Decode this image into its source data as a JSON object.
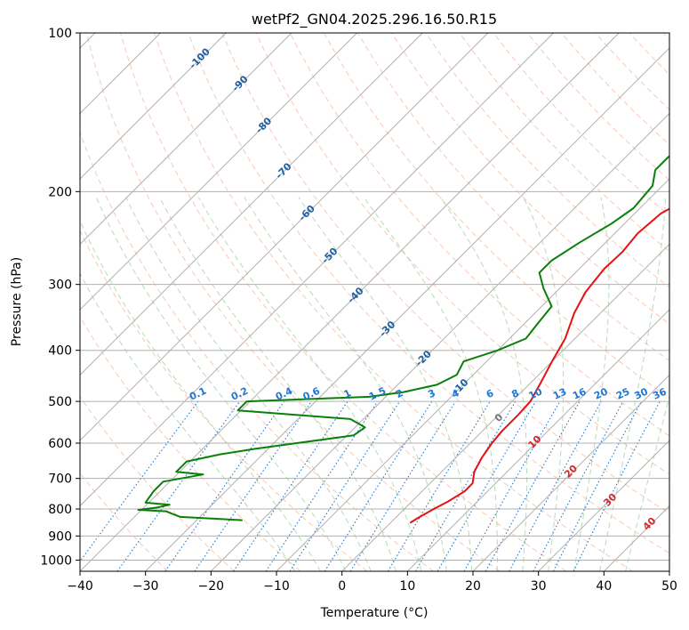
{
  "chart_data": {
    "type": "line",
    "title": "wetPf2_GN04.2025.296.16.50.R15",
    "xlabel": "Temperature (°C)",
    "ylabel": "Pressure (hPa)",
    "xlim": [
      -40,
      50
    ],
    "ylim": [
      1050,
      100
    ],
    "y_scale": "log",
    "x_ticks": [
      "−40",
      "−30",
      "−20",
      "−10",
      "0",
      "10",
      "20",
      "30",
      "40",
      "50"
    ],
    "y_ticks": [
      {
        "p": 100,
        "label": "100"
      },
      {
        "p": 200,
        "label": "200"
      },
      {
        "p": 300,
        "label": "300"
      },
      {
        "p": 400,
        "label": "400"
      },
      {
        "p": 500,
        "label": "500"
      },
      {
        "p": 600,
        "label": "600"
      },
      {
        "p": 700,
        "label": "700"
      },
      {
        "p": 800,
        "label": "800"
      },
      {
        "p": 900,
        "label": "900"
      },
      {
        "p": 1000,
        "label": "1000"
      }
    ],
    "grid": true,
    "skew": 35,
    "colors": {
      "temperature": "#e81010",
      "dewpoint": "#0a800a",
      "isotherm": "#b0b0b0",
      "dry_adiabat": "#f4a582",
      "moist_adiabat": "#99cc99",
      "mixing_ratio": "#1f77d4",
      "isotherm_label": "#1f5fa0",
      "moist_label": "#d62728",
      "dry_label": "#777777"
    },
    "series": [
      {
        "key": "temperature",
        "points": [
          [
            3.0,
            850
          ],
          [
            3.5,
            830
          ],
          [
            4.5,
            800
          ],
          [
            5.5,
            775
          ],
          [
            6.5,
            740
          ],
          [
            6.5,
            715
          ],
          [
            5.0,
            680
          ],
          [
            4.0,
            640
          ],
          [
            3.3,
            600
          ],
          [
            3.0,
            570
          ],
          [
            3.0,
            530
          ],
          [
            2.8,
            500
          ],
          [
            1.5,
            460
          ],
          [
            0.0,
            420
          ],
          [
            -1.5,
            380
          ],
          [
            -4.0,
            340
          ],
          [
            -5.5,
            310
          ],
          [
            -6.2,
            280
          ],
          [
            -6.0,
            260
          ],
          [
            -6.5,
            240
          ],
          [
            -6.0,
            220
          ],
          [
            -4.0,
            205
          ],
          [
            1.0,
            195
          ],
          [
            4.0,
            190
          ],
          [
            8.0,
            182
          ],
          [
            13.0,
            170
          ],
          [
            17.0,
            160
          ],
          [
            23.0,
            148
          ],
          [
            29.0,
            135
          ],
          [
            31.0,
            125
          ],
          [
            34.0,
            115
          ],
          [
            36.0,
            107
          ],
          [
            37.0,
            100
          ]
        ]
      },
      {
        "key": "dewpoint",
        "points": [
          [
            -23.0,
            840
          ],
          [
            -33.0,
            828
          ],
          [
            -35.0,
            815
          ],
          [
            -36.0,
            808
          ],
          [
            -40.5,
            803
          ],
          [
            -38.0,
            795
          ],
          [
            -36.5,
            785
          ],
          [
            -40.5,
            778
          ],
          [
            -41.0,
            740
          ],
          [
            -41.0,
            710
          ],
          [
            -36.0,
            688
          ],
          [
            -40.5,
            680
          ],
          [
            -40.5,
            650
          ],
          [
            -36.5,
            630
          ],
          [
            -32.0,
            615
          ],
          [
            -19.0,
            580
          ],
          [
            -18.5,
            560
          ],
          [
            -22.0,
            540
          ],
          [
            -40.5,
            520
          ],
          [
            -40.5,
            500
          ],
          [
            -22.5,
            490
          ],
          [
            -18.0,
            480
          ],
          [
            -14.0,
            465
          ],
          [
            -12.5,
            445
          ],
          [
            -13.5,
            420
          ],
          [
            -10.0,
            400
          ],
          [
            -7.5,
            380
          ],
          [
            -8.0,
            355
          ],
          [
            -8.5,
            330
          ],
          [
            -12.5,
            305
          ],
          [
            -15.5,
            285
          ],
          [
            -15.5,
            270
          ],
          [
            -14.0,
            250
          ],
          [
            -12.0,
            230
          ],
          [
            -11.0,
            215
          ],
          [
            -11.5,
            195
          ],
          [
            -13.5,
            182
          ],
          [
            -13.5,
            172
          ],
          [
            -12.0,
            160
          ],
          [
            -11.0,
            145
          ],
          [
            -10.0,
            130
          ],
          [
            -8.0,
            118
          ],
          [
            -6.0,
            108
          ],
          [
            -4.5,
            100
          ]
        ]
      }
    ],
    "isotherm_labels": [
      {
        "t": -100,
        "p": 112,
        "label": "-100"
      },
      {
        "t": -90,
        "p": 125,
        "label": "-90"
      },
      {
        "t": -80,
        "p": 150,
        "label": "-80"
      },
      {
        "t": -70,
        "p": 183,
        "label": "-70"
      },
      {
        "t": -60,
        "p": 220,
        "label": "-60"
      },
      {
        "t": -50,
        "p": 265,
        "label": "-50"
      },
      {
        "t": -40,
        "p": 315,
        "label": "-40"
      },
      {
        "t": -30,
        "p": 365,
        "label": "-30"
      },
      {
        "t": -20,
        "p": 415,
        "label": "-20"
      },
      {
        "t": -10,
        "p": 470,
        "label": "-10"
      }
    ],
    "moist_labels": [
      {
        "x": 24.0,
        "p": 538,
        "label": "0",
        "color": "dry_label"
      },
      {
        "x": 29.5,
        "p": 598,
        "label": "10",
        "color": "moist_label"
      },
      {
        "x": 35.0,
        "p": 680,
        "label": "20",
        "color": "moist_label"
      },
      {
        "x": 41.0,
        "p": 770,
        "label": "30",
        "color": "moist_label"
      },
      {
        "x": 47.0,
        "p": 855,
        "label": "40",
        "color": "moist_label"
      }
    ],
    "mixing_ratio_labels": [
      "0.1",
      "0.2",
      "0.4",
      "0.6",
      "1",
      "1.5",
      "2",
      "3",
      "4",
      "6",
      "8",
      "10",
      "13",
      "16",
      "20",
      "25",
      "30",
      "36"
    ]
  }
}
